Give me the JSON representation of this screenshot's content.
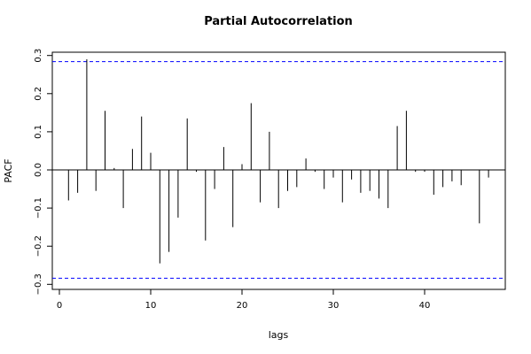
{
  "chart_data": {
    "type": "bar",
    "title": "Partial Autocorrelation",
    "xlabel": "lags",
    "ylabel": "PACF",
    "xlim": [
      0,
      48
    ],
    "ylim": [
      -0.3,
      0.3
    ],
    "xticks": [
      0,
      10,
      20,
      30,
      40
    ],
    "yticks": [
      -0.3,
      -0.2,
      -0.1,
      0.0,
      0.1,
      0.2,
      0.3
    ],
    "ytick_labels": [
      "−0.3",
      "−0.2",
      "−0.1",
      "0.0",
      "0.1",
      "0.2",
      "0.3"
    ],
    "confidence_bounds": [
      0.284,
      -0.284
    ],
    "confidence_color": "#0000ff",
    "bar_color": "#000000",
    "lags": [
      1,
      2,
      3,
      4,
      5,
      6,
      7,
      8,
      9,
      10,
      11,
      12,
      13,
      14,
      15,
      16,
      17,
      18,
      19,
      20,
      21,
      22,
      23,
      24,
      25,
      26,
      27,
      28,
      29,
      30,
      31,
      32,
      33,
      34,
      35,
      36,
      37,
      38,
      39,
      40,
      41,
      42,
      43,
      44,
      45,
      46,
      47
    ],
    "values": [
      -0.08,
      -0.06,
      0.29,
      -0.055,
      0.155,
      0.005,
      -0.1,
      0.055,
      0.14,
      0.045,
      -0.245,
      -0.215,
      -0.125,
      0.135,
      -0.005,
      -0.185,
      -0.05,
      0.06,
      -0.15,
      0.015,
      0.175,
      -0.085,
      0.1,
      -0.1,
      -0.055,
      -0.045,
      0.03,
      -0.005,
      -0.05,
      -0.02,
      -0.085,
      -0.025,
      -0.06,
      -0.055,
      -0.075,
      -0.1,
      0.115,
      0.155,
      -0.005,
      -0.005,
      -0.065,
      -0.045,
      -0.03,
      -0.04,
      0.0,
      -0.14,
      -0.02
    ]
  }
}
